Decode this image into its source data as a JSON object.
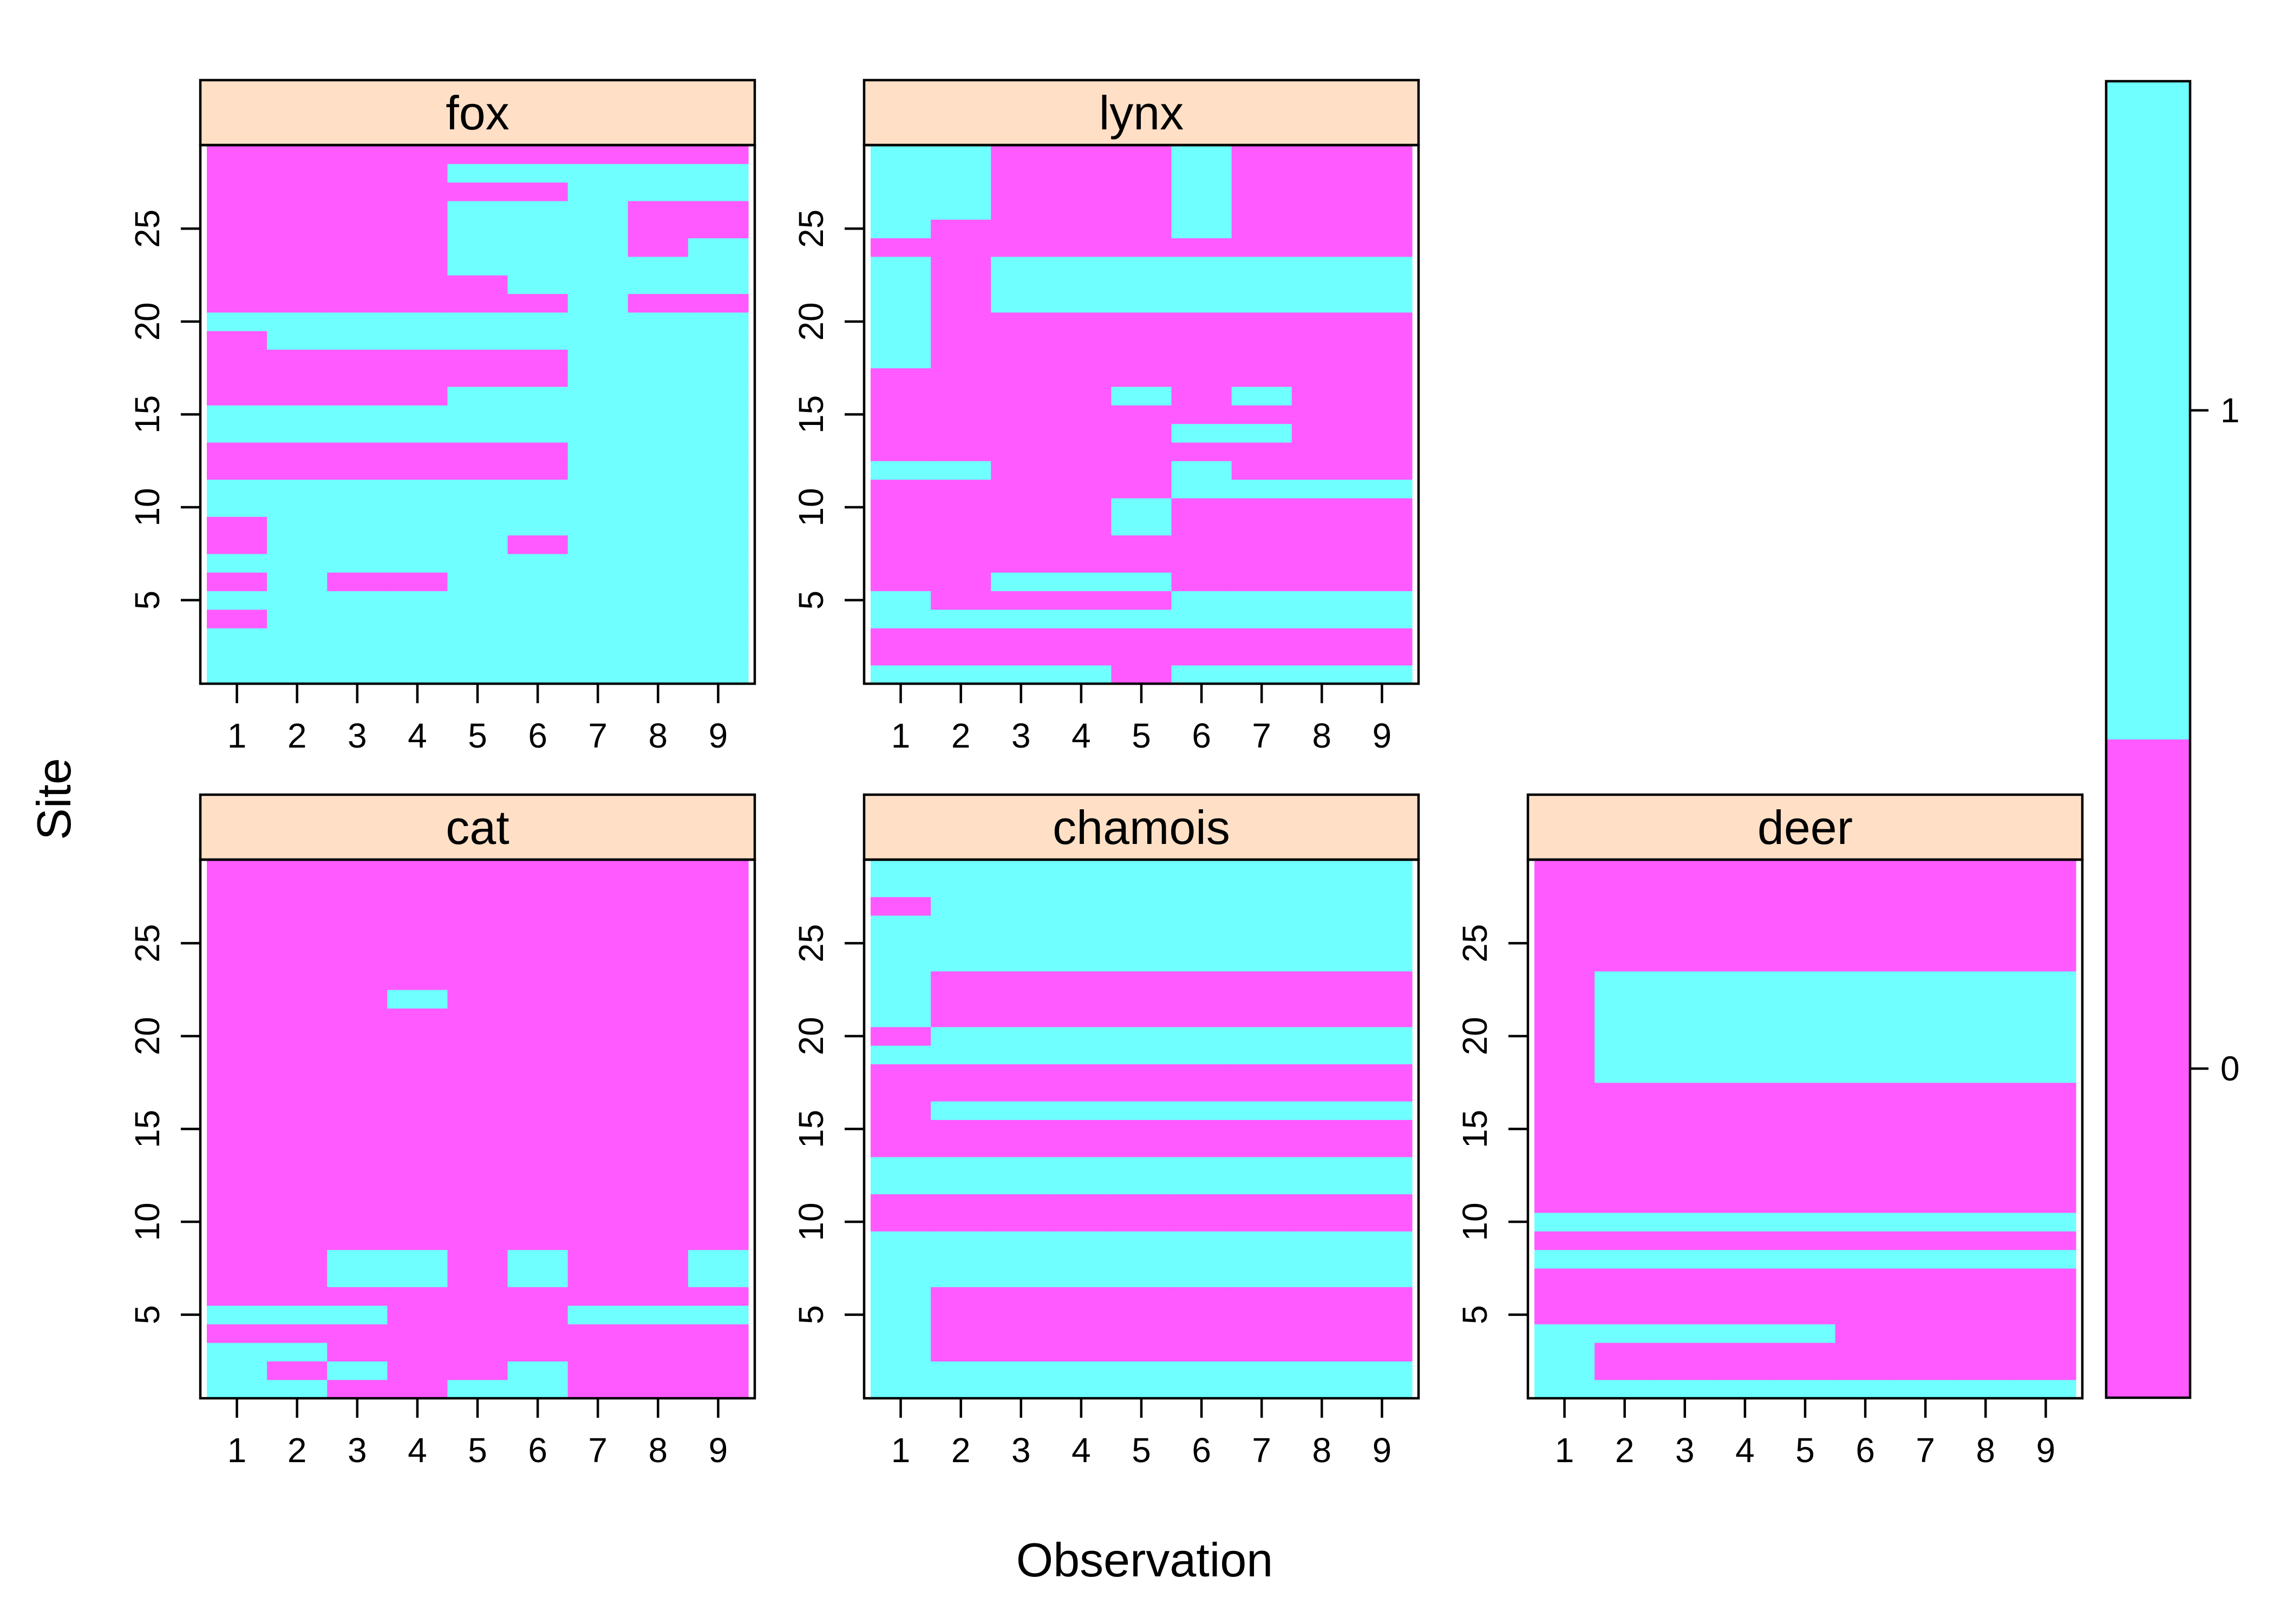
{
  "chart_data": {
    "type": "heatmap",
    "xlabel": "Observation",
    "ylabel": "Site",
    "x_ticks": [
      1,
      2,
      3,
      4,
      5,
      6,
      7,
      8,
      9
    ],
    "y_ticks": [
      5,
      10,
      15,
      20,
      25
    ],
    "x_range": [
      0.5,
      9.5
    ],
    "y_range": [
      0.5,
      29.5
    ],
    "grid": false,
    "value_levels": [
      0,
      1
    ],
    "colors": {
      "0": "#FF5AFF",
      "1": "#6FFFFF",
      "strip": "#FFE0C6"
    },
    "legend": {
      "placement": "right",
      "ticks": [
        "0",
        "1"
      ],
      "range": [
        -0.5,
        1.5
      ]
    },
    "panels": [
      {
        "name": "fox",
        "rows": [
          "111111111",
          "111111111",
          "111111111",
          "011111111",
          "111111111",
          "010011111",
          "111111111",
          "011110111",
          "011111111",
          "111111111",
          "111111111",
          "000000111",
          "000000111",
          "111111111",
          "111111111",
          "000011111",
          "000000111",
          "000000111",
          "011111111",
          "111111111",
          "000000100",
          "000001111",
          "000011111",
          "000011101",
          "000011100",
          "000011100",
          "000000111",
          "000011111",
          "000000000"
        ]
      },
      {
        "name": "lynx",
        "rows": [
          "111101111",
          "000000000",
          "000000000",
          "111111111",
          "100001111",
          "001110000",
          "000000000",
          "000000000",
          "000010000",
          "000010000",
          "000001111",
          "110001000",
          "000000000",
          "000001100",
          "000000000",
          "000010100",
          "000000000",
          "100000000",
          "100000000",
          "100000000",
          "101111111",
          "101111111",
          "101111111",
          "000000000",
          "100001000",
          "110001000",
          "110001000",
          "110001000",
          "110001000"
        ]
      },
      {
        "name": "cat",
        "rows": [
          "110011000",
          "101001000",
          "110000000",
          "000000000",
          "111000111",
          "000000000",
          "001101001",
          "001101001",
          "000000000",
          "000000000",
          "000000000",
          "000000000",
          "000000000",
          "000000000",
          "000000000",
          "000000000",
          "000000000",
          "000000000",
          "000000000",
          "000000000",
          "000000000",
          "000100000",
          "000000000",
          "000000000",
          "000000000",
          "000000000",
          "000000000",
          "000000000",
          "000000000"
        ]
      },
      {
        "name": "chamois",
        "rows": [
          "111111111",
          "111111111",
          "100000000",
          "100000000",
          "100000000",
          "100000000",
          "111111111",
          "111111111",
          "111111111",
          "000000000",
          "000000000",
          "111111111",
          "111111111",
          "000000000",
          "000000000",
          "011111111",
          "000000000",
          "000000000",
          "111111111",
          "011111111",
          "100000000",
          "100000000",
          "100000000",
          "111111111",
          "111111111",
          "111111111",
          "011111111",
          "111111111",
          "111111111"
        ]
      },
      {
        "name": "deer",
        "rows": [
          "111111111",
          "100000000",
          "100000000",
          "111110000",
          "000000000",
          "000000000",
          "000000000",
          "111111111",
          "000000000",
          "111111111",
          "000000000",
          "000000000",
          "000000000",
          "000000000",
          "000000000",
          "000000000",
          "000000000",
          "011111111",
          "011111111",
          "011111111",
          "011111111",
          "011111111",
          "011111111",
          "000000000",
          "000000000",
          "000000000",
          "000000000",
          "000000000",
          "000000000"
        ]
      }
    ]
  }
}
